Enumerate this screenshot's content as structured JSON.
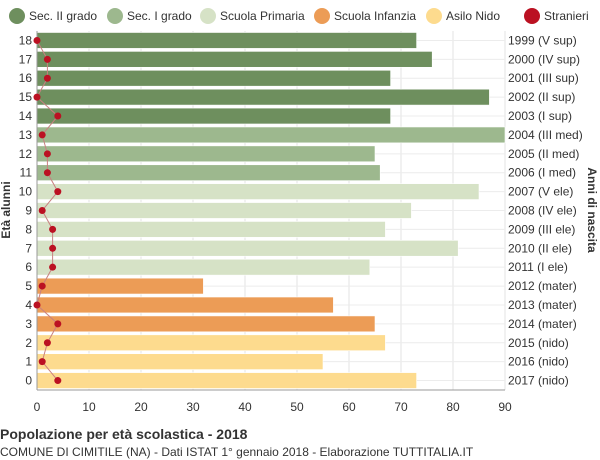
{
  "chart_data": {
    "type": "bar",
    "orientation": "horizontal",
    "ylabel_left": "Età alunni",
    "ylabel_right": "Anni di nascita",
    "xlim": [
      0,
      90
    ],
    "x_ticks": [
      0,
      10,
      20,
      30,
      40,
      50,
      60,
      70,
      80,
      90
    ],
    "grid": true,
    "legend_position": "top",
    "legend": [
      {
        "name": "Sec. II grado",
        "color": "#6e8f5e"
      },
      {
        "name": "Sec. I grado",
        "color": "#9db88e"
      },
      {
        "name": "Scuola Primaria",
        "color": "#d6e2c6"
      },
      {
        "name": "Scuola Infanzia",
        "color": "#ec9c56"
      },
      {
        "name": "Asilo Nido",
        "color": "#fddb8e"
      },
      {
        "name": "Stranieri",
        "color": "#bb1122"
      }
    ],
    "ages": [
      "18",
      "17",
      "16",
      "15",
      "14",
      "13",
      "12",
      "11",
      "10",
      "9",
      "8",
      "7",
      "6",
      "5",
      "4",
      "3",
      "2",
      "1",
      "0"
    ],
    "birth_years": [
      "1999 (V sup)",
      "2000 (IV sup)",
      "2001 (III sup)",
      "2002 (II sup)",
      "2003 (I sup)",
      "2004 (III med)",
      "2005 (II med)",
      "2006 (I med)",
      "2007 (V ele)",
      "2008 (IV ele)",
      "2009 (III ele)",
      "2010 (II ele)",
      "2011 (I ele)",
      "2012 (mater)",
      "2013 (mater)",
      "2014 (mater)",
      "2015 (nido)",
      "2016 (nido)",
      "2017 (nido)"
    ],
    "values": [
      73,
      76,
      68,
      87,
      68,
      90,
      65,
      66,
      85,
      72,
      67,
      81,
      64,
      32,
      57,
      65,
      67,
      55,
      73
    ],
    "groups": [
      "Sec. II grado",
      "Sec. II grado",
      "Sec. II grado",
      "Sec. II grado",
      "Sec. II grado",
      "Sec. I grado",
      "Sec. I grado",
      "Sec. I grado",
      "Scuola Primaria",
      "Scuola Primaria",
      "Scuola Primaria",
      "Scuola Primaria",
      "Scuola Primaria",
      "Scuola Infanzia",
      "Scuola Infanzia",
      "Scuola Infanzia",
      "Asilo Nido",
      "Asilo Nido",
      "Asilo Nido"
    ],
    "stranieri": [
      0,
      2,
      2,
      0,
      4,
      1,
      2,
      2,
      4,
      1,
      3,
      3,
      3,
      1,
      0,
      4,
      2,
      1,
      4
    ]
  },
  "footer": {
    "title": "Popolazione per età scolastica - 2018",
    "subtitle": "COMUNE DI CIMITILE (NA) - Dati ISTAT 1° gennaio 2018 - Elaborazione TUTTITALIA.IT"
  }
}
